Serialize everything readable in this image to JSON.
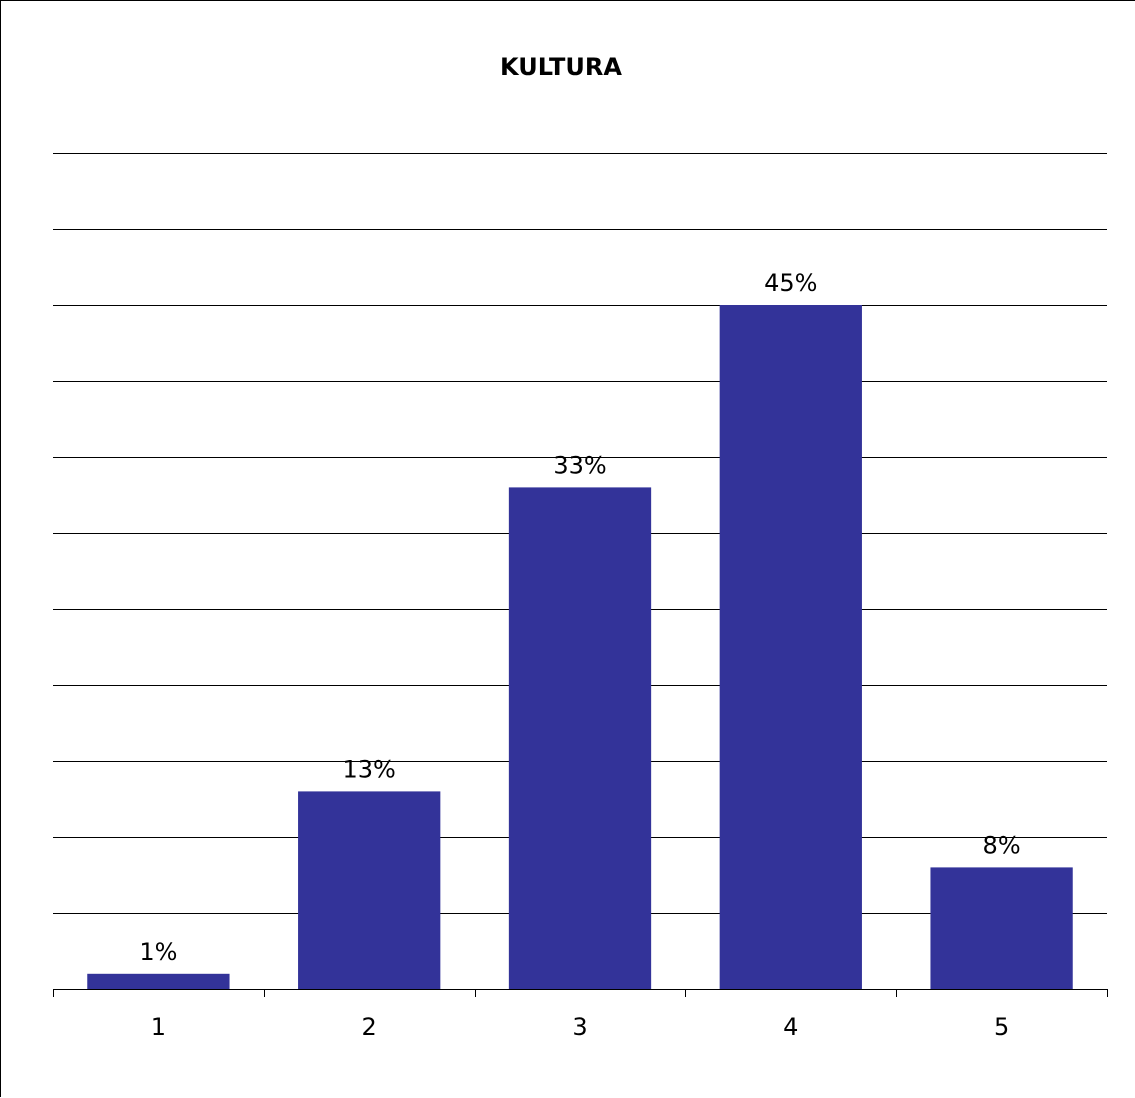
{
  "chart_data": {
    "type": "bar",
    "title": "KULTURA",
    "xlabel": "",
    "ylabel": "",
    "categories": [
      "1",
      "2",
      "3",
      "4",
      "5"
    ],
    "values": [
      1,
      13,
      33,
      45,
      8
    ],
    "data_labels": [
      "1%",
      "13%",
      "33%",
      "45%",
      "8%"
    ],
    "ylim": [
      0,
      55
    ],
    "grid": true,
    "bar_color": "#333399",
    "gridline_color": "#000000"
  }
}
